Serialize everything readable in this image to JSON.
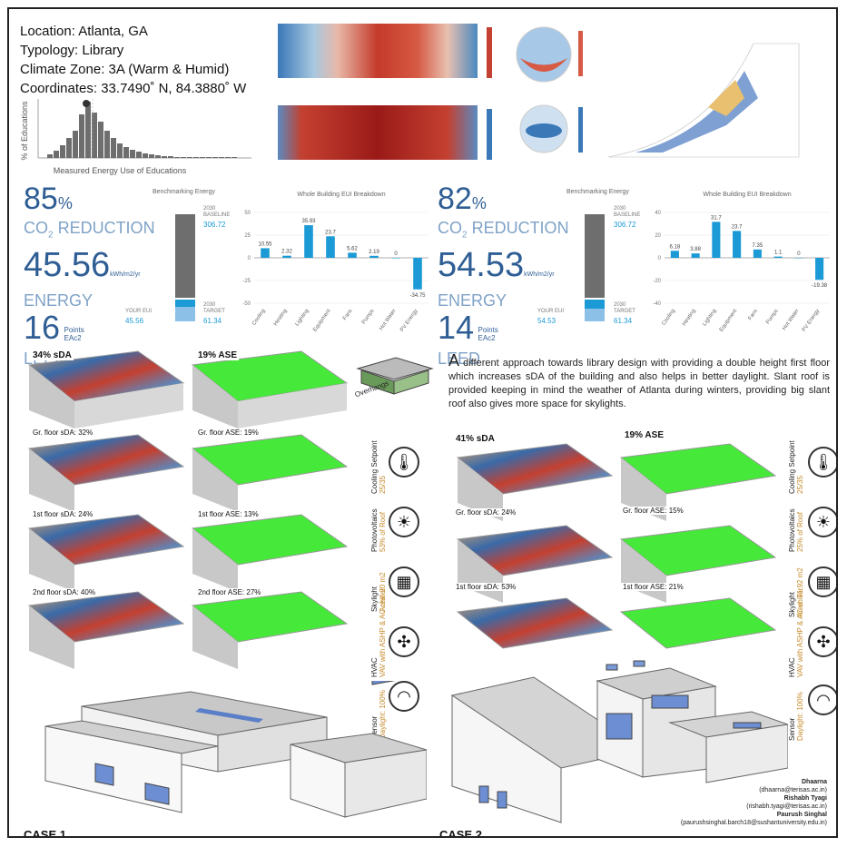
{
  "header": {
    "location": "Location: Atlanta, GA",
    "typology": "Typology: Library",
    "climate_zone": "Climate Zone: 3A (Warm & Humid)",
    "coordinates": "Coordinates: 33.7490˚ N, 84.3880˚ W"
  },
  "histogram": {
    "ylabel": "% of Educations",
    "xlabel": "Measured Energy Use of Educations"
  },
  "case1": {
    "label": "CASE 1",
    "co2_value": "85",
    "co2_unit": "%",
    "co2_label": "CO",
    "co2_sub": "2",
    "co2_label2": " REDUCTION",
    "energy_value": "45.56",
    "energy_unit": "kWh/m2/yr",
    "energy_label": "ENERGY",
    "leed_value": "16",
    "leed_unit1": "Points",
    "leed_unit2": "EAc2",
    "leed_label": "LEED",
    "bench_title": "Benchmarking Energy",
    "baseline_label": "2030\nBASELINE",
    "baseline_value": "306.72",
    "target_label": "2030\nTARGET",
    "target_value": "61.34",
    "your_eui_label": "YOUR EUI",
    "your_eui_value": "45.56",
    "breakdown_title": "Whole Building EUI Breakdown",
    "sda_total": "34% sDA",
    "ase_total": "19% ASE",
    "gr_sda": "Gr. floor sDA: 32%",
    "gr_ase": "Gr. floor ASE: 19%",
    "f1_sda": "1st floor sDA: 24%",
    "f1_ase": "1st floor ASE: 13%",
    "f2_sda": "2nd floor sDA: 40%",
    "f2_ase": "2nd floor ASE: 27%"
  },
  "case2": {
    "label": "CASE 2",
    "co2_value": "82",
    "co2_unit": "%",
    "co2_label": "CO",
    "co2_sub": "2",
    "co2_label2": " REDUCTION",
    "energy_value": "54.53",
    "energy_unit": "kWh/m2/yr",
    "energy_label": "ENERGY",
    "leed_value": "14",
    "leed_unit1": "Points",
    "leed_unit2": "EAc2",
    "leed_label": "LEED",
    "bench_title": "Benchmarking Energy",
    "baseline_label": "2030\nBASELINE",
    "baseline_value": "306.72",
    "target_label": "2030\nTARGET",
    "target_value": "61.34",
    "your_eui_label": "YOUR EUI",
    "your_eui_value": "54.53",
    "breakdown_title": "Whole Building EUI Breakdown",
    "sda_total": "41% sDA",
    "ase_total": "19% ASE",
    "gr_sda": "Gr. floor sDA: 24%",
    "gr_ase": "Gr. floor ASE: 15%",
    "f1_sda": "1st floor sDA: 53%",
    "f1_ase": "1st floor ASE: 21%",
    "description_initial": "A",
    "description": " different approach towards library design with providing a double height first floor which increases sDA of the building and also helps in better daylight. Slant roof is provided keeping in mind the weather of Atlanta during winters, providing big slant roof also gives more space for skylights."
  },
  "strategies_case1": [
    {
      "title": "Overhangs",
      "detail": "",
      "icon": "overhang-icon"
    },
    {
      "title": "Cooling Setpoint",
      "detail": "25/35",
      "icon": "thermometer-icon"
    },
    {
      "title": "Photovoltaics",
      "detail": "53% of Roof",
      "icon": "solar-panel-icon"
    },
    {
      "title": "Skylight",
      "detail": "Area: 20 m2",
      "icon": "skylight-icon"
    },
    {
      "title": "HVAC",
      "detail": "VAV with ASHP & AC chiller",
      "icon": "fan-icon"
    },
    {
      "title": "Sensor",
      "detail": "Daylight: 100%",
      "icon": "wifi-icon"
    }
  ],
  "strategies_case2": [
    {
      "title": "Cooling Setpoint",
      "detail": "25/35",
      "icon": "thermometer-icon"
    },
    {
      "title": "Photovoltaics",
      "detail": "25% of Roof",
      "icon": "solar-panel-icon"
    },
    {
      "title": "Skylight",
      "detail": "Area: 71.92 m2",
      "icon": "skylight-icon"
    },
    {
      "title": "HVAC",
      "detail": "VAV with ASHP & AC chiller",
      "icon": "fan-icon"
    },
    {
      "title": "Sensor",
      "detail": "Daylight: 100%",
      "icon": "wifi-icon"
    }
  ],
  "credits": {
    "name1": "Dhaarna",
    "email1": "(dhaarna@terisas.ac.in)",
    "name2": "Rishabh Tyagi",
    "email2": "(rishabh.tyagi@terisas.ac.in)",
    "name3": "Paurush Singhal",
    "email3": "(paurushsinghal.barch18@sushantuniversity.edu.in)"
  },
  "colors": {
    "big_number": "#2f5e95",
    "big_label": "#7fa2c7",
    "bar_blue": "#1b9ad6",
    "bar_gray": "#6e6e6e",
    "sda_green": "#46e83a",
    "accent_orange": "#c58a2a"
  },
  "chart_data": [
    {
      "type": "bar",
      "title": "Whole Building EUI Breakdown",
      "categories": [
        "Cooling",
        "Heating",
        "Lighting",
        "Equipment",
        "Fans",
        "Pumps",
        "Hot Water",
        "PV Energy"
      ],
      "values": [
        10.55,
        2.32,
        35.93,
        23.7,
        5.62,
        2.19,
        0,
        -34.75
      ],
      "ylim": [
        -50,
        50
      ],
      "yticks": [
        "50",
        "25",
        "0",
        "-25",
        "-50"
      ]
    },
    {
      "type": "bar",
      "title": "Whole Building EUI Breakdown",
      "categories": [
        "Cooling",
        "Heating",
        "Lighting",
        "Equipment",
        "Fans",
        "Pumps",
        "Hot Water",
        "PV Energy"
      ],
      "values": [
        6.18,
        3.88,
        31.7,
        23.7,
        7.35,
        1.1,
        0,
        -19.38
      ],
      "ylim": [
        -40,
        40
      ],
      "yticks": [
        "40",
        "20",
        "0",
        "-20",
        "-40"
      ]
    }
  ]
}
